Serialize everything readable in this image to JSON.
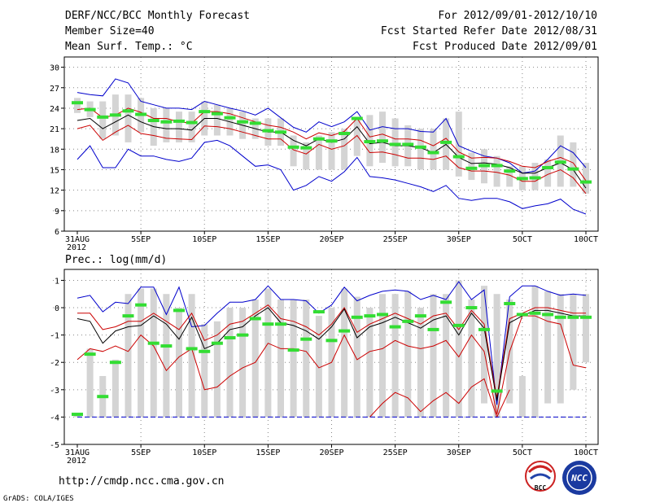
{
  "header": {
    "left": [
      "DERF/NCC/BCC Monthly Forecast",
      "Member Size=40",
      "Mean Surf. Temp.: °C"
    ],
    "right": [
      "For 2012/09/01-2012/10/10",
      "Fcst Started Refer Date 2012/08/31",
      "Fcst Produced Date 2012/09/01"
    ]
  },
  "precip_label": "Prec.: log(mm/d)",
  "footer": {
    "url": "http://cmdp.ncc.cma.gov.cn",
    "grads": "GrADS: COLA/IGES",
    "logo_bcc": "BCC",
    "logo_ncc": "NCC"
  },
  "colors": {
    "box": "#d4d4d4",
    "mean": "#000000",
    "inner": "#cc0000",
    "outer": "#0000cc",
    "median": "#33dd33",
    "grid": "#888888"
  },
  "chart_data": [
    {
      "type": "box",
      "title": "Mean Surf. Temp.: °C",
      "days": 41,
      "x_tick_labels": [
        "31AUG",
        "5SEP",
        "10SEP",
        "15SEP",
        "20SEP",
        "25SEP",
        "30SEP",
        "5OCT",
        "10OCT"
      ],
      "x_tick_days": [
        0,
        5,
        10,
        15,
        20,
        25,
        30,
        35,
        40
      ],
      "x_sub_label": "2012",
      "ylim": [
        6,
        31.5
      ],
      "y_ticks": [
        6,
        9,
        12,
        15,
        18,
        21,
        24,
        27,
        30
      ],
      "box_low": [
        23.3,
        22.7,
        19.5,
        20.0,
        19.0,
        20.5,
        18.5,
        19.0,
        19.0,
        19.0,
        20.0,
        20.0,
        20.0,
        19.5,
        19.5,
        18.5,
        18.5,
        15.5,
        15.0,
        15.0,
        15.0,
        15.0,
        17.0,
        15.5,
        16.0,
        15.5,
        15.5,
        15.0,
        15.0,
        15.0,
        14.0,
        13.5,
        13.0,
        12.5,
        12.5,
        12.0,
        12.0,
        12.5,
        12.5,
        12.5,
        11.5
      ],
      "box_high": [
        25.5,
        25.0,
        25.0,
        26.0,
        26.0,
        25.5,
        24.0,
        24.0,
        23.5,
        23.5,
        25.0,
        24.5,
        24.0,
        23.5,
        22.5,
        22.5,
        22.5,
        20.0,
        19.0,
        20.0,
        20.5,
        21.0,
        22.5,
        23.0,
        23.5,
        22.5,
        21.5,
        21.0,
        21.0,
        22.5,
        23.5,
        17.5,
        18.0,
        17.0,
        15.5,
        15.5,
        16.0,
        16.5,
        20.0,
        19.0,
        16.0
      ],
      "median": [
        24.8,
        23.8,
        22.7,
        23.0,
        23.6,
        23.1,
        22.2,
        22.0,
        22.1,
        21.9,
        23.5,
        23.2,
        22.6,
        22.0,
        21.8,
        20.7,
        20.5,
        18.3,
        18.2,
        19.5,
        19.2,
        20.3,
        22.5,
        19.1,
        19.2,
        18.7,
        18.7,
        18.3,
        17.5,
        19.0,
        16.9,
        15.2,
        15.6,
        15.6,
        14.8,
        13.7,
        13.8,
        15.3,
        16.1,
        15.1,
        13.2
      ],
      "mean": [
        22.2,
        22.5,
        21.0,
        22.0,
        23.0,
        22.0,
        21.3,
        21.0,
        21.0,
        20.8,
        22.5,
        22.5,
        22.0,
        21.5,
        21.0,
        20.5,
        20.5,
        19.3,
        18.5,
        19.5,
        19.0,
        19.5,
        21.3,
        18.8,
        19.0,
        18.5,
        18.5,
        18.2,
        17.5,
        18.7,
        16.8,
        15.9,
        16.0,
        15.8,
        15.3,
        14.5,
        14.5,
        15.3,
        16.0,
        15.0,
        12.3
      ],
      "inner_high": [
        23.8,
        24.0,
        22.6,
        23.0,
        24.0,
        23.4,
        22.5,
        22.5,
        22.0,
        21.8,
        23.5,
        23.5,
        23.2,
        22.6,
        22.0,
        21.5,
        21.2,
        20.5,
        19.5,
        20.4,
        20.0,
        20.6,
        22.5,
        19.8,
        20.2,
        19.5,
        19.5,
        19.3,
        18.5,
        19.6,
        17.6,
        16.7,
        16.8,
        16.7,
        16.2,
        15.5,
        15.3,
        16.2,
        16.8,
        16.0,
        13.4
      ],
      "inner_low": [
        21.0,
        21.5,
        19.3,
        20.5,
        21.5,
        20.3,
        20.0,
        19.6,
        19.5,
        19.4,
        21.4,
        21.3,
        21.0,
        20.5,
        20.0,
        19.5,
        19.5,
        17.9,
        17.3,
        18.7,
        18.0,
        18.5,
        20.0,
        17.5,
        17.6,
        17.2,
        16.7,
        16.7,
        16.5,
        17.0,
        15.3,
        14.8,
        14.8,
        14.6,
        14.2,
        13.3,
        13.3,
        14.3,
        15.0,
        13.8,
        11.5
      ],
      "outer_high": [
        26.3,
        26.0,
        25.8,
        28.3,
        27.7,
        25.0,
        24.5,
        24.0,
        24.0,
        23.8,
        25.0,
        24.5,
        24.0,
        23.6,
        23.0,
        24.0,
        22.6,
        21.2,
        20.5,
        22.0,
        21.3,
        22.0,
        23.5,
        20.8,
        21.3,
        21.0,
        21.0,
        20.6,
        20.5,
        22.5,
        18.5,
        17.7,
        17.0,
        16.7,
        16.0,
        14.5,
        14.8,
        16.5,
        18.5,
        17.5,
        15.3
      ],
      "outer_low": [
        16.5,
        18.5,
        15.3,
        15.3,
        18.0,
        17.0,
        17.0,
        16.5,
        16.2,
        16.7,
        19.0,
        19.3,
        18.5,
        17.0,
        15.5,
        15.7,
        15.0,
        12.0,
        12.7,
        14.0,
        13.3,
        14.7,
        16.8,
        14.0,
        13.8,
        13.5,
        13.0,
        12.5,
        11.8,
        12.7,
        10.8,
        10.5,
        10.8,
        10.8,
        10.3,
        9.3,
        9.7,
        10.0,
        10.7,
        9.2,
        8.5
      ]
    },
    {
      "type": "box",
      "title": "Prec.: log(mm/d)",
      "days": 41,
      "x_tick_labels": [
        "31AUG",
        "5SEP",
        "10SEP",
        "15SEP",
        "20SEP",
        "25SEP",
        "30SEP",
        "5OCT",
        "10OCT"
      ],
      "x_tick_days": [
        0,
        5,
        10,
        15,
        20,
        25,
        30,
        35,
        40
      ],
      "x_sub_label": "2012",
      "ylim": [
        -5,
        1.4
      ],
      "y_ticks": [
        -5,
        -4,
        -3,
        -2,
        -1,
        0,
        1
      ],
      "box_low": [
        -4.0,
        -4.0,
        -4.0,
        -4.0,
        -4.0,
        -4.0,
        -4.0,
        -4.0,
        -4.0,
        -4.0,
        -4.0,
        -4.0,
        -4.0,
        -4.0,
        -4.0,
        -4.0,
        -4.0,
        -4.0,
        -4.0,
        -4.0,
        -4.0,
        -4.0,
        -4.0,
        -4.0,
        -4.0,
        -4.0,
        -4.0,
        -4.0,
        -4.0,
        -4.0,
        -4.0,
        -4.0,
        -3.5,
        -4.0,
        -3.5,
        -4.0,
        -4.0,
        -3.5,
        -3.5,
        -3.0,
        -2.0
      ],
      "box_high": [
        -3.9,
        -1.5,
        -2.5,
        -1.9,
        0.5,
        0.7,
        0.7,
        0.5,
        0.0,
        0.5,
        -0.6,
        -0.5,
        0.0,
        0.0,
        0.3,
        0.7,
        0.3,
        0.3,
        0.3,
        -0.3,
        0.0,
        0.7,
        0.4,
        0.0,
        0.5,
        0.5,
        0.6,
        0.0,
        0.5,
        0.5,
        1.0,
        0.3,
        0.8,
        0.5,
        0.3,
        -2.5,
        0.8,
        0.6,
        0.5,
        0.5,
        0.5
      ],
      "median": [
        -3.9,
        -1.7,
        -3.25,
        -2.0,
        -0.3,
        0.1,
        -1.3,
        -1.4,
        -0.1,
        -1.5,
        -1.6,
        -1.3,
        -1.1,
        -1.0,
        -0.4,
        -0.6,
        -0.6,
        -1.55,
        -1.15,
        -0.15,
        -1.2,
        -0.85,
        -0.35,
        -0.3,
        -0.25,
        -0.7,
        -0.5,
        -0.3,
        -0.8,
        0.2,
        -0.65,
        0.0,
        -0.8,
        -3.05,
        0.15,
        -0.25,
        -0.2,
        -0.25,
        -0.35,
        -0.35,
        -0.35
      ],
      "mean": [
        -0.4,
        -0.5,
        -1.3,
        -0.85,
        -0.7,
        -0.65,
        -0.3,
        -0.6,
        -1.15,
        -0.35,
        -1.5,
        -1.3,
        -0.8,
        -0.7,
        -0.3,
        0.0,
        -0.55,
        -0.65,
        -0.85,
        -1.15,
        -0.7,
        -0.05,
        -1.1,
        -0.7,
        -0.55,
        -0.35,
        -0.55,
        -0.75,
        -0.45,
        -0.3,
        -1.0,
        -0.2,
        -0.75,
        -3.4,
        -0.55,
        -0.3,
        -0.1,
        -0.1,
        -0.2,
        -0.3,
        -0.3
      ],
      "inner_high": [
        -0.2,
        -0.2,
        -0.8,
        -0.7,
        -0.5,
        -0.5,
        -0.2,
        -0.5,
        -0.8,
        -0.2,
        -1.2,
        -1.0,
        -0.6,
        -0.5,
        -0.2,
        0.1,
        -0.4,
        -0.5,
        -0.7,
        -1.0,
        -0.6,
        0.0,
        -0.9,
        -0.6,
        -0.4,
        -0.2,
        -0.4,
        -0.6,
        -0.3,
        -0.2,
        -0.8,
        -0.1,
        -0.6,
        -3.3,
        -0.4,
        -0.2,
        0.0,
        0.0,
        -0.1,
        -0.2,
        -0.2
      ],
      "inner_low": [
        -1.9,
        -1.5,
        -1.6,
        -1.4,
        -1.6,
        -1.0,
        -1.4,
        -2.3,
        -1.8,
        -1.5,
        -3.0,
        -2.9,
        -2.5,
        -2.2,
        -2.0,
        -1.3,
        -1.5,
        -1.5,
        -1.6,
        -2.2,
        -2.0,
        -1.0,
        -1.9,
        -1.6,
        -1.5,
        -1.2,
        -1.4,
        -1.5,
        -1.4,
        -1.2,
        -1.8,
        -1.0,
        -1.6,
        -3.9,
        -1.6,
        -0.3,
        -0.3,
        -0.5,
        -0.6,
        -2.1,
        -2.2
      ],
      "outer_high": [
        0.35,
        0.45,
        -0.15,
        0.2,
        0.15,
        0.75,
        0.75,
        -0.25,
        0.75,
        -0.7,
        -0.65,
        -0.2,
        0.2,
        0.2,
        0.3,
        0.8,
        0.3,
        0.3,
        0.25,
        -0.2,
        0.1,
        0.75,
        0.25,
        0.45,
        0.6,
        0.65,
        0.6,
        0.3,
        0.45,
        0.3,
        0.95,
        0.3,
        0.65,
        -3.55,
        0.4,
        0.8,
        0.8,
        0.6,
        0.45,
        0.5,
        0.45
      ],
      "outer_low": [
        -4.0,
        -4.0,
        -4.0,
        -4.0,
        -4.0,
        -4.0,
        -4.0,
        -4.0,
        -4.0,
        -4.0,
        -4.0,
        -4.0,
        -4.0,
        -4.0,
        -4.0,
        -4.0,
        -4.0,
        -4.0,
        -4.0,
        -4.0,
        -4.0,
        -4.0,
        -4.0,
        -4.0,
        -4.0,
        -4.0,
        -4.0,
        -4.0,
        -4.0,
        -4.0,
        -4.0,
        -4.0,
        -4.0,
        -4.0,
        -4.0,
        -4.0,
        -4.0,
        -4.0,
        -4.0,
        -4.0,
        -4.0
      ],
      "inner_low_deep": [
        null,
        null,
        null,
        null,
        null,
        null,
        null,
        null,
        null,
        null,
        null,
        null,
        null,
        null,
        null,
        null,
        null,
        null,
        null,
        null,
        null,
        null,
        null,
        -4.0,
        -3.5,
        -3.1,
        -3.3,
        -3.8,
        -3.4,
        -3.1,
        -3.5,
        -2.9,
        -2.6,
        -4.0,
        -3.0,
        null,
        null,
        null,
        null,
        null,
        null
      ]
    }
  ]
}
